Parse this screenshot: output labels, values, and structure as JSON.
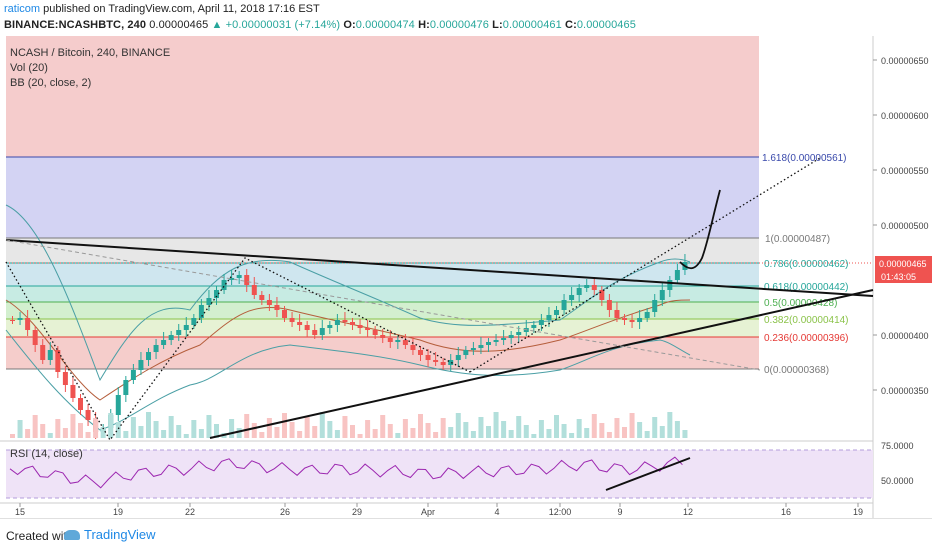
{
  "header": {
    "publisher": "raticom",
    "published_text": "published on TradingView.com, April 11, 2018 17:16 EST",
    "symbol": "BINANCE:NCASHBTC, 240",
    "last": "0.00000465",
    "change": "+0.00000031 (+7.14%)",
    "open_label": "O:",
    "open": "0.00000474",
    "high_label": "H:",
    "high": "0.00000476",
    "low_label": "L:",
    "low": "0.00000461",
    "close_label": "C:",
    "close": "0.00000465"
  },
  "legends": {
    "title": "NCASH / Bitcoin, 240, BINANCE",
    "vol": "Vol (20)",
    "bb": "BB (20, close, 2)",
    "rsi": "RSI (14, close)"
  },
  "price_axis": {
    "ticks": [
      "0.00000650",
      "0.00000600",
      "0.00000550",
      "0.00000500",
      "0.00000400",
      "0.00000350"
    ],
    "current_price": "0.00000465",
    "countdown": "01:43:05"
  },
  "rsi_axis": {
    "ticks": [
      "75.0000",
      "50.0000"
    ]
  },
  "time_axis": {
    "ticks": [
      "15",
      "19",
      "22",
      "26",
      "29",
      "Apr",
      "4",
      "12:00",
      "9",
      "12",
      "16",
      "19"
    ]
  },
  "fib_levels": [
    {
      "ratio": "1.618",
      "label": "1.618(0.00000561)",
      "color": "#3949ab"
    },
    {
      "ratio": "1",
      "label": "1(0.00000487)",
      "color": "#787878"
    },
    {
      "ratio": "0.786",
      "label": "0.786(0.00000462)",
      "color": "#26a69a"
    },
    {
      "ratio": "0.618",
      "label": "0.618(0.00000442)",
      "color": "#26a69a"
    },
    {
      "ratio": "0.5",
      "label": "0.5(0.00000428)",
      "color": "#4caf50"
    },
    {
      "ratio": "0.382",
      "label": "0.382(0.00000414)",
      "color": "#8bc34a"
    },
    {
      "ratio": "0.236",
      "label": "0.236(0.00000396)",
      "color": "#e53935"
    },
    {
      "ratio": "0",
      "label": "0(0.00000368)",
      "color": "#787878"
    }
  ],
  "colors": {
    "up": "#26a69a",
    "down": "#ef5350",
    "bb_band": "#4a9fa5",
    "bb_mid": "#b55e3c",
    "rsi_line": "#9c27b0",
    "rsi_bg": "#efe3f7",
    "accent": "#1e88e5"
  },
  "footer": {
    "created_with": "Created with",
    "brand": "TradingView"
  }
}
